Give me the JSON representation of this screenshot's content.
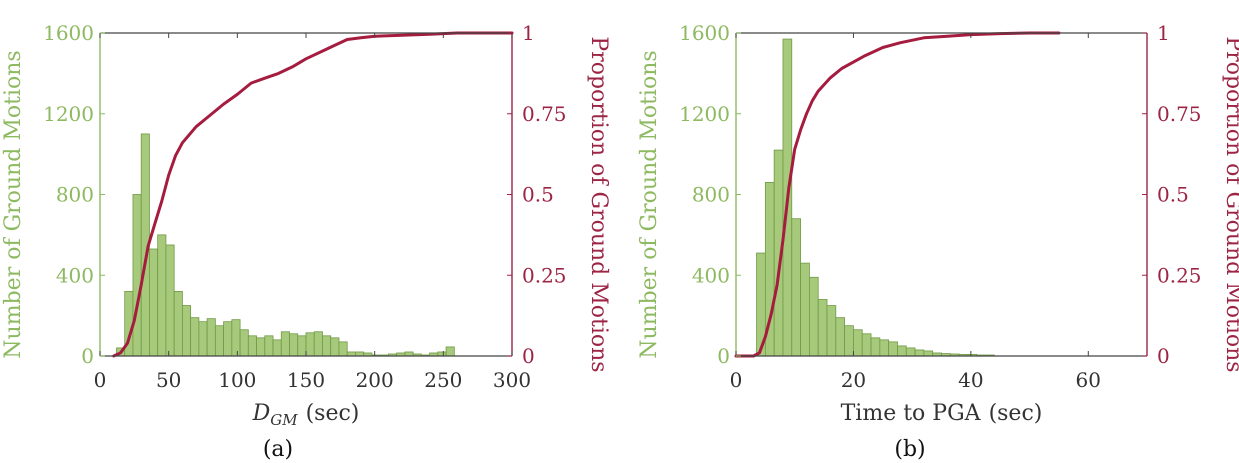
{
  "colors": {
    "bar_fill": "#a7c97c",
    "bar_stroke": "#6f9a44",
    "left_axis": "#8db960",
    "right_axis": "#9c2444",
    "cdf_line": "#a51c3f",
    "frame": "#444444"
  },
  "chart_data": [
    {
      "type": "bar",
      "panel_label": "(a)",
      "xlabel_main": "D",
      "xlabel_sub": "GM",
      "xlabel_unit": "(sec)",
      "ylabel_left": "Number of Ground Motions",
      "ylabel_right": "Proportion of Ground Motions",
      "xlim": [
        0,
        300
      ],
      "ylim": [
        0,
        1600
      ],
      "y2lim": [
        0,
        1
      ],
      "xticks": [
        "0",
        "50",
        "100",
        "150",
        "200",
        "250",
        "300"
      ],
      "xtick_values": [
        0,
        50,
        100,
        150,
        200,
        250,
        300
      ],
      "yticks": [
        "0",
        "400",
        "800",
        "1200",
        "1600"
      ],
      "ytick_values": [
        0,
        400,
        800,
        1200,
        1600
      ],
      "y2ticks": [
        "0",
        "0.25",
        "0.5",
        "0.75",
        "1"
      ],
      "y2tick_values": [
        0,
        0.25,
        0.5,
        0.75,
        1
      ],
      "bin_width": 6,
      "bin_starts": [
        12,
        18,
        24,
        30,
        36,
        42,
        48,
        54,
        60,
        66,
        72,
        78,
        84,
        90,
        96,
        102,
        108,
        114,
        120,
        126,
        132,
        138,
        144,
        150,
        156,
        162,
        168,
        174,
        180,
        186,
        192,
        198,
        204,
        210,
        216,
        222,
        228,
        234,
        240,
        246,
        252,
        258
      ],
      "values": [
        40,
        320,
        800,
        1100,
        530,
        600,
        550,
        320,
        250,
        190,
        170,
        185,
        150,
        170,
        180,
        130,
        100,
        90,
        100,
        80,
        120,
        110,
        100,
        115,
        120,
        100,
        90,
        70,
        20,
        20,
        15,
        5,
        5,
        10,
        15,
        20,
        10,
        5,
        15,
        20,
        45,
        0
      ],
      "cdf": {
        "x": [
          10,
          15,
          20,
          25,
          30,
          35,
          40,
          45,
          50,
          55,
          60,
          70,
          80,
          90,
          100,
          110,
          120,
          130,
          140,
          150,
          160,
          170,
          180,
          190,
          200,
          220,
          240,
          250,
          260,
          270,
          300
        ],
        "y": [
          0,
          0.01,
          0.04,
          0.11,
          0.22,
          0.34,
          0.41,
          0.48,
          0.56,
          0.62,
          0.66,
          0.71,
          0.745,
          0.78,
          0.81,
          0.845,
          0.86,
          0.875,
          0.895,
          0.92,
          0.94,
          0.96,
          0.98,
          0.985,
          0.99,
          0.993,
          0.996,
          0.998,
          1.0,
          1.0,
          1.0
        ]
      }
    },
    {
      "type": "bar",
      "panel_label": "(b)",
      "xlabel_main": "Time to PGA",
      "xlabel_sub": "",
      "xlabel_unit": "(sec)",
      "ylabel_left": "Number of Ground Motions",
      "ylabel_right": "Proportion of Ground Motions",
      "xlim": [
        0,
        70
      ],
      "ylim": [
        0,
        1600
      ],
      "y2lim": [
        0,
        1
      ],
      "xticks": [
        "0",
        "20",
        "40",
        "60"
      ],
      "xtick_values": [
        0,
        20,
        40,
        60
      ],
      "yticks": [
        "0",
        "400",
        "800",
        "1200",
        "1600"
      ],
      "ytick_values": [
        0,
        400,
        800,
        1200,
        1600
      ],
      "y2ticks": [
        "0",
        "0.25",
        "0.5",
        "0.75",
        "1"
      ],
      "y2tick_values": [
        0,
        0.25,
        0.5,
        0.75,
        1
      ],
      "bin_width": 1.5,
      "bin_starts": [
        3.5,
        5,
        6.5,
        8,
        9.5,
        11,
        12.5,
        14,
        15.5,
        17,
        18.5,
        20,
        21.5,
        23,
        24.5,
        26,
        27.5,
        29,
        30.5,
        32,
        33.5,
        35,
        36.5,
        38,
        39.5,
        41,
        42.5
      ],
      "values": [
        510,
        860,
        1020,
        1570,
        680,
        460,
        390,
        280,
        250,
        190,
        150,
        130,
        110,
        90,
        80,
        70,
        50,
        40,
        30,
        25,
        15,
        12,
        10,
        8,
        8,
        5,
        5
      ],
      "cdf": {
        "x": [
          0,
          3,
          4,
          5,
          6,
          7,
          8,
          9,
          10,
          11,
          12,
          13,
          14,
          16,
          18,
          20,
          22,
          25,
          28,
          32,
          36,
          40,
          45,
          50,
          55
        ],
        "y": [
          0,
          0,
          0.01,
          0.06,
          0.13,
          0.22,
          0.36,
          0.52,
          0.64,
          0.7,
          0.75,
          0.79,
          0.82,
          0.86,
          0.89,
          0.91,
          0.93,
          0.955,
          0.97,
          0.985,
          0.99,
          0.995,
          0.998,
          1.0,
          1.0
        ]
      }
    }
  ]
}
